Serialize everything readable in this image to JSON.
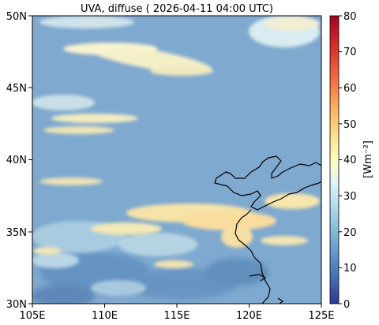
{
  "title": "UVA, diffuse ( 2026-04-11 04:00 UTC)",
  "map": {
    "lon_range": [
      105,
      125
    ],
    "lat_range": [
      30,
      50
    ],
    "x_ticks": [
      "105E",
      "110E",
      "115E",
      "120E",
      "125E"
    ],
    "y_ticks": [
      "30N",
      "35N",
      "40N",
      "45N",
      "50N"
    ],
    "background_color": "#7fa9cf"
  },
  "colorbar": {
    "label": "[Wm⁻²]",
    "range": [
      0,
      80
    ],
    "ticks": [
      "0",
      "10",
      "20",
      "30",
      "40",
      "50",
      "60",
      "70",
      "80"
    ],
    "colors": [
      "#313695",
      "#4575b4",
      "#74add1",
      "#abd9e9",
      "#e0f3f8",
      "#ffffbf",
      "#fee090",
      "#fdae61",
      "#f46d43",
      "#d73027",
      "#a50026"
    ]
  }
}
